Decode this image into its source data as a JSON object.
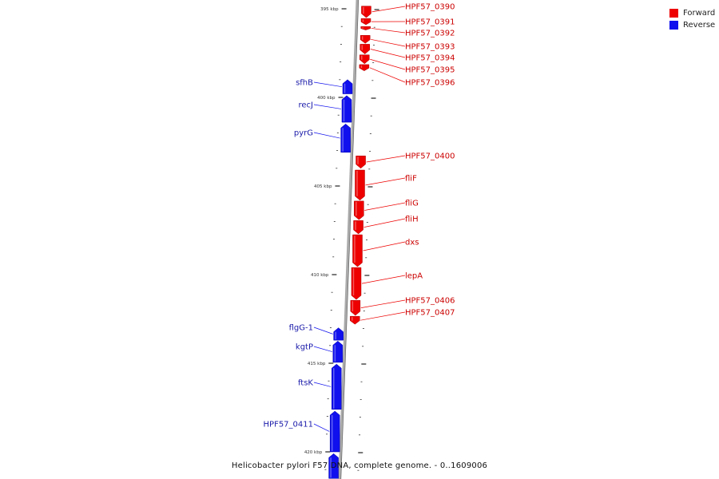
{
  "colors": {
    "forward": "#ee0000",
    "reverse": "#1010ee",
    "axis": "#aaaaaa"
  },
  "legend": [
    {
      "label": "Forward",
      "color": "#ee0000"
    },
    {
      "label": "Reverse",
      "color": "#1010ee"
    }
  ],
  "caption": "Helicobacter pylori F57 DNA, complete genome. - 0..1609006",
  "axis": {
    "unit": "kbp",
    "ticks": [
      {
        "kbp": 395,
        "label": "395 kbp"
      },
      {
        "kbp": 400,
        "label": "400 kbp"
      },
      {
        "kbp": 405,
        "label": "405 kbp"
      },
      {
        "kbp": 410,
        "label": "410 kbp"
      },
      {
        "kbp": 415,
        "label": "415 kbp"
      },
      {
        "kbp": 420,
        "label": "420 kbp"
      }
    ]
  },
  "genes": [
    {
      "name": "HPF57_0390",
      "strand": "forward",
      "start_kbp": 394.85,
      "end_kbp": 395.5
    },
    {
      "name": "HPF57_0391",
      "strand": "forward",
      "start_kbp": 395.55,
      "end_kbp": 395.9
    },
    {
      "name": "HPF57_0392",
      "strand": "forward",
      "start_kbp": 396.0,
      "end_kbp": 396.2
    },
    {
      "name": "HPF57_0393",
      "strand": "forward",
      "start_kbp": 396.5,
      "end_kbp": 396.95
    },
    {
      "name": "HPF57_0394",
      "strand": "forward",
      "start_kbp": 397.0,
      "end_kbp": 397.55
    },
    {
      "name": "HPF57_0395",
      "strand": "forward",
      "start_kbp": 397.6,
      "end_kbp": 398.1
    },
    {
      "name": "HPF57_0396",
      "strand": "forward",
      "start_kbp": 398.15,
      "end_kbp": 398.5
    },
    {
      "name": "sfhB",
      "strand": "reverse",
      "start_kbp": 399.0,
      "end_kbp": 399.8
    },
    {
      "name": "recJ",
      "strand": "reverse",
      "start_kbp": 399.9,
      "end_kbp": 401.4
    },
    {
      "name": "pyrG",
      "strand": "reverse",
      "start_kbp": 401.5,
      "end_kbp": 403.1
    },
    {
      "name": "HPF57_0400",
      "strand": "forward",
      "start_kbp": 403.3,
      "end_kbp": 404.0
    },
    {
      "name": "fliF",
      "strand": "forward",
      "start_kbp": 404.1,
      "end_kbp": 405.8
    },
    {
      "name": "fliG",
      "strand": "forward",
      "start_kbp": 405.85,
      "end_kbp": 406.9
    },
    {
      "name": "fliH",
      "strand": "forward",
      "start_kbp": 406.95,
      "end_kbp": 407.7
    },
    {
      "name": "dxs",
      "strand": "forward",
      "start_kbp": 407.75,
      "end_kbp": 409.55
    },
    {
      "name": "lepA",
      "strand": "forward",
      "start_kbp": 409.6,
      "end_kbp": 411.4
    },
    {
      "name": "HPF57_0406",
      "strand": "forward",
      "start_kbp": 411.45,
      "end_kbp": 412.3
    },
    {
      "name": "HPF57_0407",
      "strand": "forward",
      "start_kbp": 412.35,
      "end_kbp": 412.8
    },
    {
      "name": "flgG-1",
      "strand": "reverse",
      "start_kbp": 413.0,
      "end_kbp": 413.7
    },
    {
      "name": "kgtP",
      "strand": "reverse",
      "start_kbp": 413.75,
      "end_kbp": 414.95
    },
    {
      "name": "ftsK",
      "strand": "reverse",
      "start_kbp": 415.05,
      "end_kbp": 417.6
    },
    {
      "name": "HPF57_0411",
      "strand": "reverse",
      "start_kbp": 417.7,
      "end_kbp": 420.0
    },
    {
      "name": "",
      "strand": "reverse",
      "start_kbp": 420.1,
      "end_kbp": 421.5
    }
  ]
}
